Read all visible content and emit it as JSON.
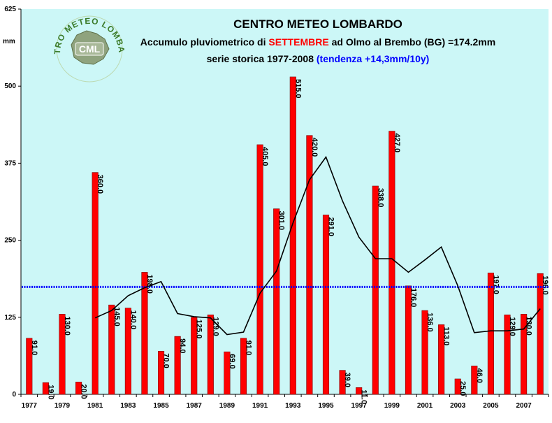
{
  "chart_data": {
    "type": "bar",
    "title": "CENTRO METEO LOMBARDO",
    "subtitle_parts": [
      {
        "text": "Accumulo pluviometrico di ",
        "color": "#000000"
      },
      {
        "text": "SETTEMBRE",
        "color": "#ff0000"
      },
      {
        "text": " ad Olmo al Brembo (BG) ",
        "color": "#000000"
      },
      {
        "text": "=174.2mm",
        "color": "#000000"
      }
    ],
    "subtitle2_parts": [
      {
        "text": "serie storica 1977-2008 ",
        "color": "#000000"
      },
      {
        "text": "(tendenza +14,3mm/10y)",
        "color": "#0000ff"
      }
    ],
    "ylabel": "mm",
    "ylim": [
      0,
      625
    ],
    "yticks": [
      "0",
      "125",
      "250",
      "375",
      "500",
      "625"
    ],
    "x": [
      1977,
      1978,
      1979,
      1980,
      1981,
      1982,
      1983,
      1984,
      1985,
      1986,
      1987,
      1988,
      1989,
      1990,
      1991,
      1992,
      1993,
      1994,
      1995,
      1996,
      1997,
      1998,
      1999,
      2000,
      2001,
      2002,
      2003,
      2004,
      2005,
      2006,
      2007,
      2008
    ],
    "xticks": [
      "1977",
      "1979",
      "1981",
      "1983",
      "1985",
      "1987",
      "1989",
      "1991",
      "1993",
      "1995",
      "1997",
      "1999",
      "2001",
      "2003",
      "2005",
      "2007"
    ],
    "values": [
      91,
      19,
      130,
      20,
      360,
      145,
      140,
      198,
      70,
      94,
      125,
      129,
      69,
      91,
      405,
      301,
      515,
      420,
      291,
      39,
      11,
      338,
      427,
      176,
      136,
      113,
      25,
      46,
      197,
      129,
      130,
      196
    ],
    "value_labels": [
      "91.0",
      "19.0",
      "130.0",
      "20.0",
      "360.0",
      "145.0",
      "140.0",
      "198.0",
      "70.0",
      "94.0",
      "125.0",
      "129.0",
      "69.0",
      "91.0",
      "405.0",
      "301.0",
      "515.0",
      "420.0",
      "291.0",
      "39.0",
      "11.0",
      "338.0",
      "427.0",
      "176.0",
      "136.0",
      "113.0",
      "25.0",
      "46.0",
      "197.0",
      "129.0",
      "130.0",
      "196.0"
    ],
    "moving_average": [
      null,
      null,
      null,
      null,
      124,
      136,
      160,
      173,
      183,
      131,
      126,
      124,
      97,
      101,
      164,
      200,
      278,
      348,
      385,
      314,
      255,
      220,
      220,
      198,
      218,
      239,
      176,
      100,
      103,
      103,
      106,
      139
    ],
    "mean_line": 174.2,
    "colors": {
      "bars": "#ff0000",
      "bar_edge": "#7a0000",
      "plot_bg": "#ccf7f7",
      "mean_line": "#0000ff",
      "trend_line": "#000000"
    },
    "grid": false,
    "logo": {
      "text": "CENTRO METEO LOMBARDO",
      "badge": "CML"
    }
  }
}
